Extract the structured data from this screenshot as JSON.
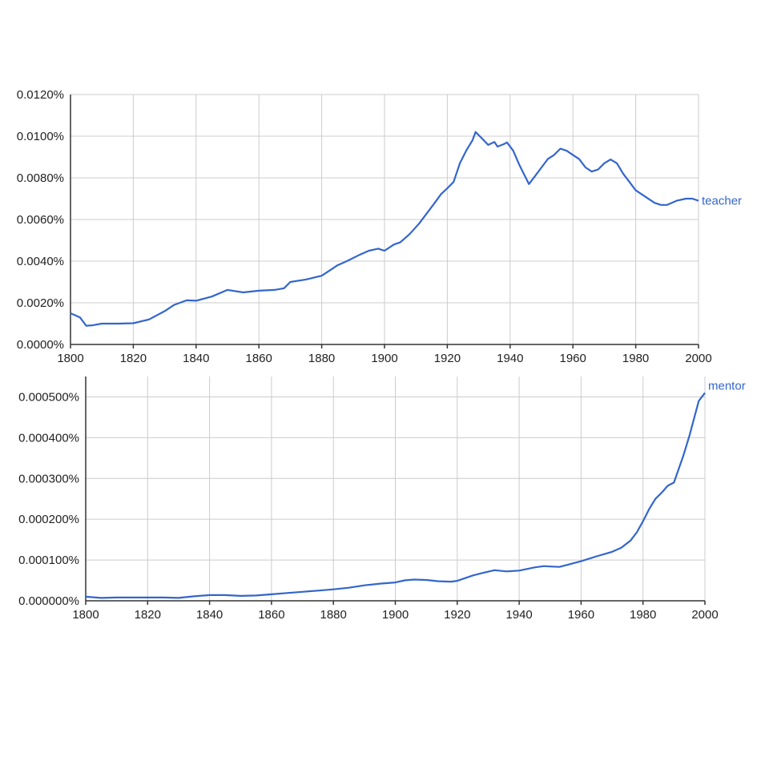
{
  "chart_data": [
    {
      "type": "line",
      "x_ticks": [
        "1800",
        "1820",
        "1840",
        "1860",
        "1880",
        "1900",
        "1920",
        "1940",
        "1960",
        "1980",
        "2000"
      ],
      "y_ticks": [
        "0.0000%",
        "0.0020%",
        "0.0040%",
        "0.0060%",
        "0.0080%",
        "0.0100%",
        "0.0120%"
      ],
      "xlim": [
        1800,
        2000
      ],
      "ylim": [
        0,
        0.012
      ],
      "grid": true,
      "series": [
        {
          "name": "teacher",
          "color": "#3366cc",
          "x": [
            1800,
            1803,
            1805,
            1807,
            1810,
            1815,
            1820,
            1825,
            1830,
            1833,
            1837,
            1840,
            1845,
            1850,
            1855,
            1860,
            1865,
            1868,
            1870,
            1875,
            1880,
            1883,
            1885,
            1888,
            1892,
            1895,
            1898,
            1900,
            1903,
            1905,
            1908,
            1911,
            1914,
            1916,
            1918,
            1920,
            1922,
            1924,
            1926,
            1928,
            1929,
            1931,
            1933,
            1935,
            1936,
            1938,
            1939,
            1941,
            1943,
            1944,
            1946,
            1948,
            1950,
            1952,
            1954,
            1956,
            1958,
            1960,
            1962,
            1964,
            1966,
            1968,
            1970,
            1972,
            1974,
            1976,
            1978,
            1980,
            1983,
            1986,
            1988,
            1990,
            1993,
            1996,
            1998,
            2000
          ],
          "values": [
            0.0015,
            0.0013,
            0.0009,
            0.00092,
            0.001,
            0.001,
            0.00102,
            0.0012,
            0.0016,
            0.0019,
            0.00212,
            0.0021,
            0.0023,
            0.00262,
            0.0025,
            0.00258,
            0.00262,
            0.0027,
            0.003,
            0.00312,
            0.0033,
            0.0036,
            0.0038,
            0.004,
            0.0043,
            0.0045,
            0.0046,
            0.0045,
            0.0048,
            0.0049,
            0.0053,
            0.0058,
            0.0064,
            0.0068,
            0.00722,
            0.0075,
            0.0078,
            0.0087,
            0.0093,
            0.0098,
            0.0102,
            0.0099,
            0.00958,
            0.00972,
            0.0095,
            0.00962,
            0.0097,
            0.0093,
            0.0086,
            0.0083,
            0.0077,
            0.0081,
            0.0085,
            0.0089,
            0.0091,
            0.0094,
            0.0093,
            0.0091,
            0.0089,
            0.0085,
            0.0083,
            0.0084,
            0.0087,
            0.00888,
            0.0087,
            0.0082,
            0.0078,
            0.0074,
            0.0071,
            0.0068,
            0.0067,
            0.0067,
            0.0069,
            0.007,
            0.007,
            0.0069
          ]
        }
      ]
    },
    {
      "type": "line",
      "x_ticks": [
        "1800",
        "1820",
        "1840",
        "1860",
        "1880",
        "1900",
        "1920",
        "1940",
        "1960",
        "1980",
        "2000"
      ],
      "y_ticks": [
        "0.000000%",
        "0.000100%",
        "0.000200%",
        "0.000300%",
        "0.000400%",
        "0.000500%"
      ],
      "xlim": [
        1800,
        2000
      ],
      "ylim": [
        0,
        0.00055
      ],
      "grid": true,
      "series": [
        {
          "name": "mentor",
          "color": "#3366cc",
          "x": [
            1800,
            1805,
            1810,
            1815,
            1820,
            1825,
            1830,
            1835,
            1840,
            1845,
            1850,
            1855,
            1860,
            1865,
            1870,
            1875,
            1880,
            1885,
            1890,
            1895,
            1900,
            1903,
            1906,
            1910,
            1914,
            1918,
            1920,
            1925,
            1928,
            1932,
            1936,
            1940,
            1945,
            1948,
            1950,
            1953,
            1955,
            1960,
            1965,
            1970,
            1973,
            1976,
            1978,
            1980,
            1982,
            1984,
            1986,
            1988,
            1990,
            1993,
            1995,
            1998,
            2000
          ],
          "values": [
            1e-05,
            7e-06,
            8e-06,
            8e-06,
            8e-06,
            8e-06,
            7e-06,
            1.1e-05,
            1.4e-05,
            1.4e-05,
            1.2e-05,
            1.3e-05,
            1.6e-05,
            1.9e-05,
            2.2e-05,
            2.5e-05,
            2.8e-05,
            3.2e-05,
            3.8e-05,
            4.2e-05,
            4.5e-05,
            5e-05,
            5.2e-05,
            5.1e-05,
            4.8e-05,
            4.7e-05,
            4.9e-05,
            6.2e-05,
            6.8e-05,
            7.5e-05,
            7.2e-05,
            7.4e-05,
            8.2e-05,
            8.5e-05,
            8.4e-05,
            8.3e-05,
            8.7e-05,
            9.7e-05,
            0.000109,
            0.00012,
            0.00013,
            0.000148,
            0.000168,
            0.000195,
            0.000225,
            0.00025,
            0.000265,
            0.000282,
            0.00029,
            0.000355,
            0.000405,
            0.00049,
            0.00051
          ]
        }
      ]
    }
  ]
}
